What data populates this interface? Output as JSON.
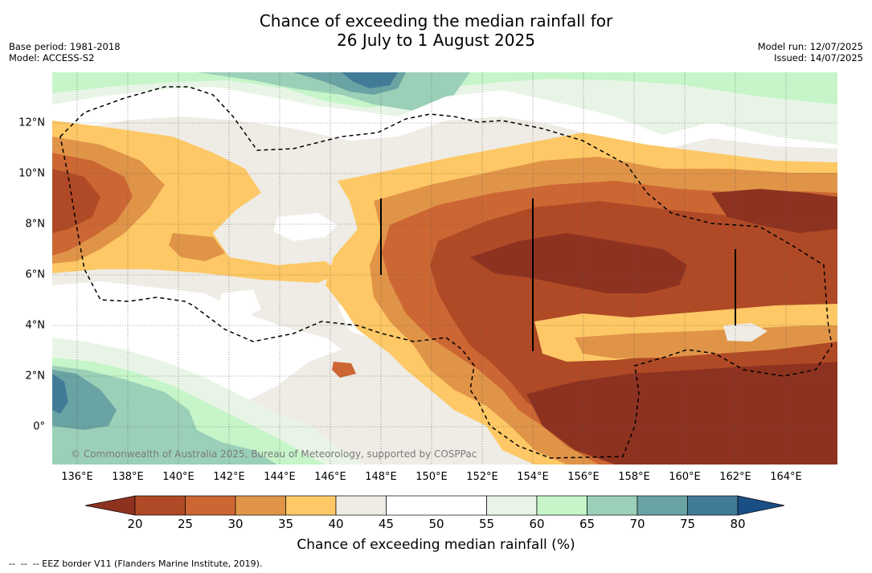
{
  "header": {
    "title_line1": "Chance of exceeding the median rainfall for",
    "title_line2": "26 July to 1 August 2025",
    "base_period": "Base period: 1981-2018",
    "model": "Model: ACCESS-S2",
    "model_run": "Model run: 12/07/2025",
    "issued": "Issued: 14/07/2025"
  },
  "map": {
    "lon_labels": [
      "136°E",
      "138°E",
      "140°E",
      "142°E",
      "144°E",
      "146°E",
      "148°E",
      "150°E",
      "152°E",
      "154°E",
      "156°E",
      "158°E",
      "160°E",
      "162°E",
      "164°E"
    ],
    "lat_labels": [
      "12°N",
      "10°N",
      "8°N",
      "6°N",
      "4°N",
      "2°N",
      "0°"
    ],
    "copyright": "© Commonwealth of Australia 2025, Bureau of Meteorology, supported by COSPPac",
    "eez_line_style": "dashed black"
  },
  "colorbar": {
    "ticks": [
      "20",
      "25",
      "30",
      "35",
      "40",
      "45",
      "50",
      "55",
      "60",
      "65",
      "70",
      "75",
      "80"
    ],
    "colors": {
      "under": "#8e3220",
      "b20_25": "#b04a26",
      "b25_30": "#cc6633",
      "b30_35": "#e09448",
      "b35_40": "#fdc865",
      "b40_45": "#efebe5",
      "b45_55": "#ffffff",
      "b55_60": "#e8f5e6",
      "b60_65": "#c5f5c8",
      "b65_70": "#9bd0b8",
      "b70_75": "#6aa3a3",
      "b75_80": "#427b98",
      "over": "#1a4f86"
    },
    "title": "Chance of exceeding median rainfall (%)"
  },
  "footnote": "--  --  -- EEZ border V11 (Flanders Marine Institute, 2019)."
}
